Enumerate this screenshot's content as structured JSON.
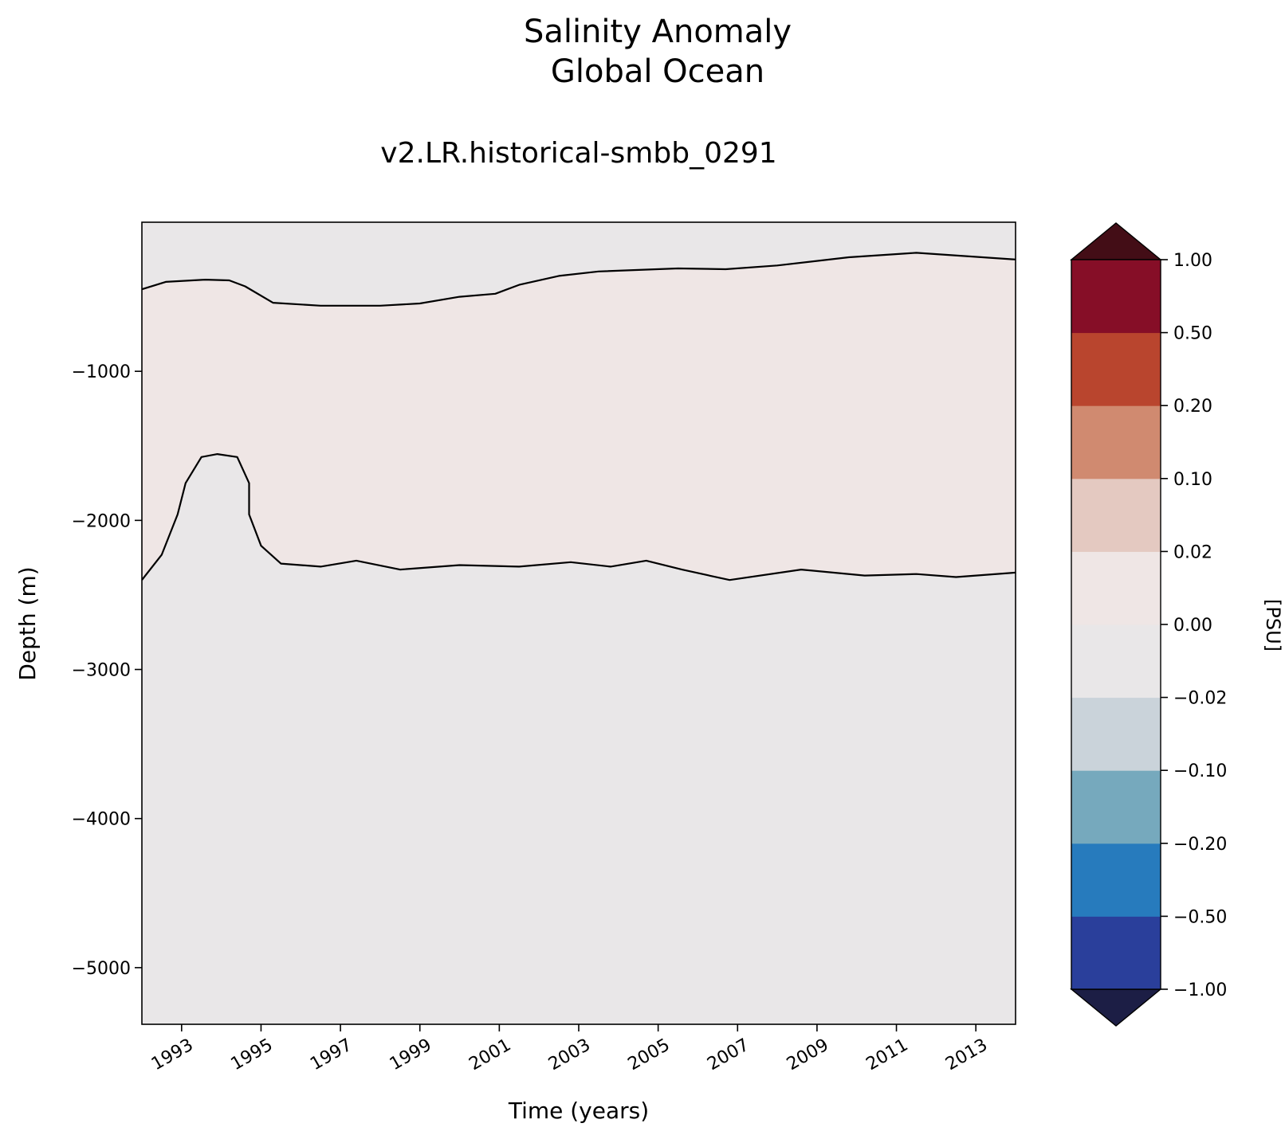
{
  "chart_data": {
    "type": "heatmap",
    "title": "Salinity Anomaly",
    "title_line2": "Global Ocean",
    "subtitle": "v2.LR.historical-smbb_0291",
    "xlabel": "Time (years)",
    "ylabel": "Depth (m)",
    "xlim": [
      1992.0,
      2014.0
    ],
    "ylim": [
      -5380,
      0
    ],
    "x_ticks": [
      1993,
      1995,
      1997,
      1999,
      2001,
      2003,
      2005,
      2007,
      2009,
      2011,
      2013
    ],
    "x_tick_labels": [
      "1993",
      "1995",
      "1997",
      "1999",
      "2001",
      "2003",
      "2005",
      "2007",
      "2009",
      "2011",
      "2013"
    ],
    "y_ticks": [
      -1000,
      -2000,
      -3000,
      -4000,
      -5000
    ],
    "y_tick_labels": [
      "−1000",
      "−2000",
      "−3000",
      "−4000",
      "−5000"
    ],
    "colorbar": {
      "label": "[PSU]",
      "levels": [
        -1.0,
        -0.5,
        -0.2,
        -0.1,
        -0.02,
        0.0,
        0.02,
        0.1,
        0.2,
        0.5,
        1.0
      ],
      "tick_labels": [
        "−1.00",
        "−0.50",
        "−0.20",
        "−0.10",
        "−0.02",
        "0.00",
        "0.02",
        "0.10",
        "0.20",
        "0.50",
        "1.00"
      ],
      "colors": [
        "#2a3f9b",
        "#277bbd",
        "#76a9bd",
        "#cad3da",
        "#e9e7e8",
        "#efe6e5",
        "#e4c9c1",
        "#d08a70",
        "#b9452e",
        "#860e27"
      ],
      "under_color": "#1c1e45",
      "over_color": "#430d16"
    },
    "background_fill": "#e9e7e8",
    "regions": [
      {
        "name": "positive-anomaly-0-to-0.02",
        "range": [
          0.0,
          0.02
        ],
        "upper_boundary": [
          [
            1992.0,
            -450
          ],
          [
            1992.6,
            -400
          ],
          [
            1993.6,
            -385
          ],
          [
            1994.2,
            -390
          ],
          [
            1994.6,
            -430
          ],
          [
            1995.3,
            -540
          ],
          [
            1996.5,
            -560
          ],
          [
            1998.0,
            -560
          ],
          [
            1999.0,
            -545
          ],
          [
            2000.0,
            -500
          ],
          [
            2000.9,
            -480
          ],
          [
            2001.5,
            -420
          ],
          [
            2002.5,
            -360
          ],
          [
            2003.5,
            -330
          ],
          [
            2005.5,
            -310
          ],
          [
            2006.7,
            -315
          ],
          [
            2008.0,
            -290
          ],
          [
            2009.8,
            -235
          ],
          [
            2011.5,
            -205
          ],
          [
            2014.0,
            -250
          ]
        ],
        "lower_boundary": [
          [
            1992.0,
            -2400
          ],
          [
            1992.5,
            -2230
          ],
          [
            1992.9,
            -1960
          ],
          [
            1993.1,
            -1750
          ],
          [
            1993.5,
            -1575
          ],
          [
            1993.9,
            -1555
          ],
          [
            1994.4,
            -1575
          ],
          [
            1994.7,
            -1750
          ],
          [
            1994.7,
            -1960
          ],
          [
            1995.0,
            -2170
          ],
          [
            1995.5,
            -2290
          ],
          [
            1996.5,
            -2310
          ],
          [
            1997.4,
            -2270
          ],
          [
            1998.5,
            -2330
          ],
          [
            2000.0,
            -2300
          ],
          [
            2001.5,
            -2310
          ],
          [
            2002.8,
            -2280
          ],
          [
            2003.8,
            -2310
          ],
          [
            2004.7,
            -2270
          ],
          [
            2005.6,
            -2330
          ],
          [
            2006.8,
            -2400
          ],
          [
            2008.6,
            -2330
          ],
          [
            2010.2,
            -2370
          ],
          [
            2011.5,
            -2360
          ],
          [
            2012.5,
            -2380
          ],
          [
            2014.0,
            -2350
          ]
        ]
      }
    ]
  }
}
